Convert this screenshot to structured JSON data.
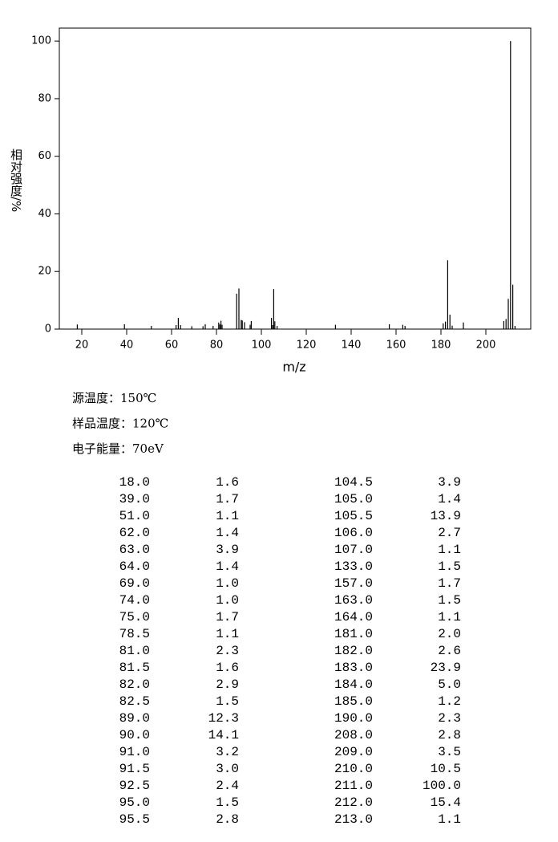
{
  "chart_data": {
    "type": "stem",
    "xlabel": "m/z",
    "ylabel": "相对强度/%",
    "xlim": [
      10,
      220
    ],
    "ylim": [
      0,
      104.5
    ],
    "xticks": [
      20,
      40,
      60,
      80,
      100,
      120,
      140,
      160,
      180,
      200
    ],
    "yticks": [
      0,
      20,
      40,
      60,
      80,
      100
    ],
    "color": "#000000",
    "x": [
      18.0,
      39.0,
      51.0,
      62.0,
      63.0,
      64.0,
      69.0,
      74.0,
      75.0,
      78.5,
      81.0,
      81.5,
      82.0,
      82.5,
      89.0,
      90.0,
      91.0,
      91.5,
      92.5,
      95.0,
      95.5,
      104.5,
      105.0,
      105.5,
      106.0,
      107.0,
      133.0,
      157.0,
      163.0,
      164.0,
      181.0,
      182.0,
      183.0,
      184.0,
      185.0,
      190.0,
      208.0,
      209.0,
      210.0,
      211.0,
      212.0,
      213.0
    ],
    "x_labels": [
      "18.0",
      "39.0",
      "51.0",
      "62.0",
      "63.0",
      "64.0",
      "69.0",
      "74.0",
      "75.0",
      "78.5",
      "81.0",
      "81.5",
      "82.0",
      "82.5",
      "89.0",
      "90.0",
      "91.0",
      "91.5",
      "92.5",
      "95.0",
      "95.5",
      "104.5",
      "105.0",
      "105.5",
      "106.0",
      "107.0",
      "133.0",
      "157.0",
      "163.0",
      "164.0",
      "181.0",
      "182.0",
      "183.0",
      "184.0",
      "185.0",
      "190.0",
      "208.0",
      "209.0",
      "210.0",
      "211.0",
      "212.0",
      "213.0"
    ],
    "values": [
      1.6,
      1.7,
      1.1,
      1.4,
      3.9,
      1.4,
      1.0,
      1.0,
      1.7,
      1.1,
      2.3,
      1.6,
      2.9,
      1.5,
      12.3,
      14.1,
      3.2,
      3.0,
      2.4,
      1.5,
      2.8,
      3.9,
      1.4,
      13.9,
      2.7,
      1.1,
      1.5,
      1.7,
      1.5,
      1.1,
      2.0,
      2.6,
      23.9,
      5.0,
      1.2,
      2.3,
      2.8,
      3.5,
      10.5,
      100.0,
      15.4,
      1.1
    ],
    "value_labels": [
      "1.6",
      "1.7",
      "1.1",
      "1.4",
      "3.9",
      "1.4",
      "1.0",
      "1.0",
      "1.7",
      "1.1",
      "2.3",
      "1.6",
      "2.9",
      "1.5",
      "12.3",
      "14.1",
      "3.2",
      "3.0",
      "2.4",
      "1.5",
      "2.8",
      "3.9",
      "1.4",
      "13.9",
      "2.7",
      "1.1",
      "1.5",
      "1.7",
      "1.5",
      "1.1",
      "2.0",
      "2.6",
      "23.9",
      "5.0",
      "1.2",
      "2.3",
      "2.8",
      "3.5",
      "10.5",
      "100.0",
      "15.4",
      "1.1"
    ]
  },
  "notes": [
    "源温度：150℃",
    "样品温度：120℃",
    "电子能量：70eV"
  ]
}
